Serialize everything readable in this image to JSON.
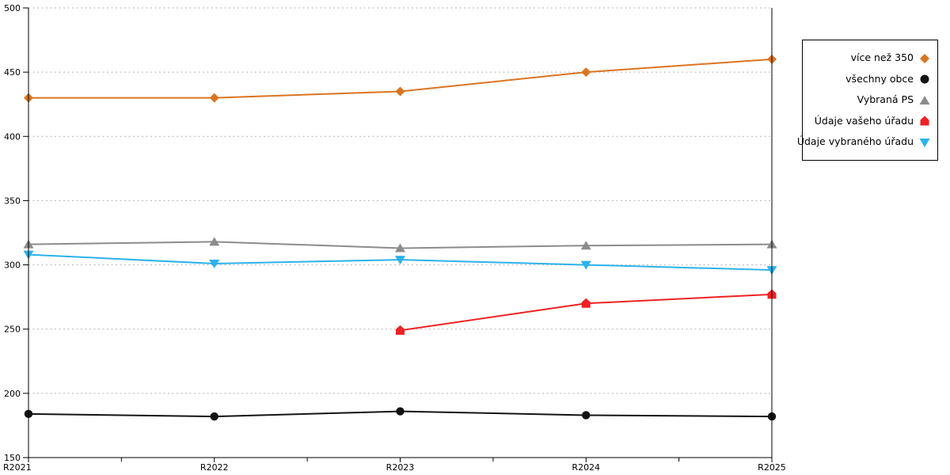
{
  "chart_data": {
    "type": "line",
    "title": "",
    "xlabel": "",
    "ylabel": "",
    "categories": [
      "R2021",
      "R2022",
      "R2023",
      "R2024",
      "R2025"
    ],
    "series": [
      {
        "name": "více než 350",
        "color": "#db7420",
        "marker": "diamond",
        "values": [
          430,
          430,
          435,
          450,
          460
        ]
      },
      {
        "name": "všechny obce",
        "color": "#141414",
        "marker": "circle",
        "values": [
          184,
          182,
          186,
          183,
          182
        ]
      },
      {
        "name": "Vybraná PS",
        "color": "#8c8c8c",
        "marker": "triangle-up",
        "values": [
          316,
          318,
          313,
          315,
          316
        ]
      },
      {
        "name": "Údaje vašeho úřadu",
        "color": "#ee2222",
        "marker": "pentagon",
        "values": [
          null,
          null,
          249,
          270,
          277
        ]
      },
      {
        "name": "Údaje vybraného úřadu",
        "color": "#2bb2ea",
        "marker": "triangle-down",
        "values": [
          308,
          301,
          304,
          300,
          296
        ]
      }
    ],
    "ylim": [
      150,
      500
    ],
    "yticks": [
      150,
      200,
      250,
      300,
      350,
      400,
      450,
      500
    ],
    "grid": "dotted-horizontal",
    "grid_color": "#b3b3b3",
    "axis_color": "#000000",
    "legend_position": "right"
  }
}
